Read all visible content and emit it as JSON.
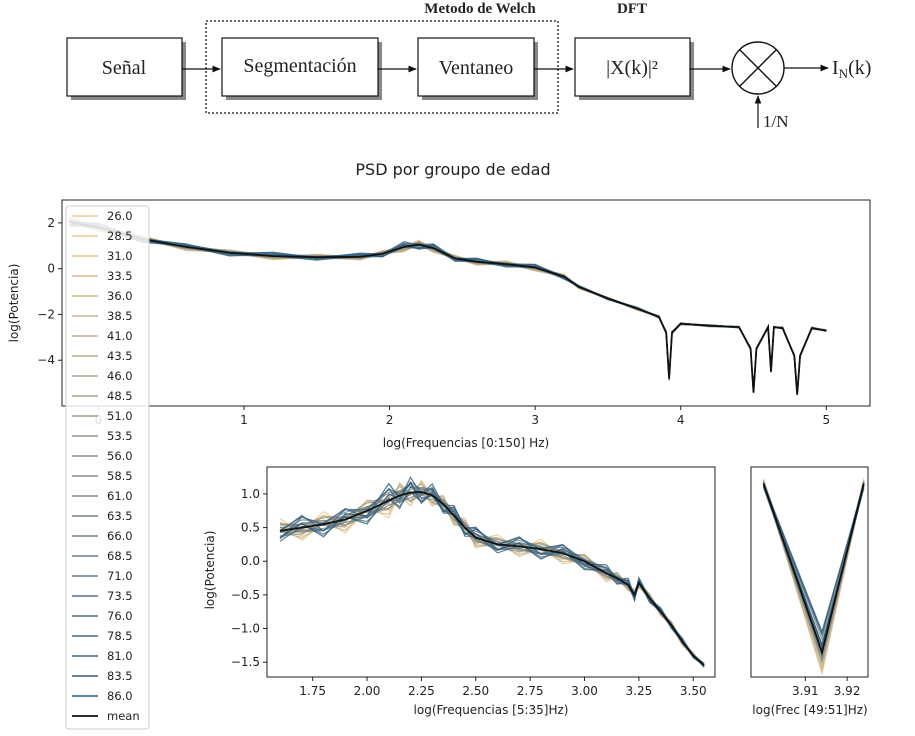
{
  "block_diagram": {
    "group_labels": {
      "welch": "Metodo de Welch",
      "dft": "DFT"
    },
    "blocks": {
      "signal": "Señal",
      "segmentation": "Segmentación",
      "windowing": "Ventaneo",
      "dft": "|X(k)|²"
    },
    "output_label": "I",
    "output_sub": "N",
    "output_suffix": "(k)",
    "multiplier_input": "1/N"
  },
  "colors": {
    "young": "#f2c98d",
    "old": "#2c5e82",
    "mean": "#111111",
    "axis": "#222222"
  },
  "chart_data": [
    {
      "id": "main",
      "type": "line",
      "title": "PSD por groupo de edad",
      "xlabel": "log(Frequencias  [0:150] Hz)",
      "ylabel": "log(Potencia)",
      "xlim": [
        -0.25,
        5.3
      ],
      "ylim": [
        -6.0,
        3.0
      ],
      "xticks": [
        0,
        1,
        2,
        3,
        4,
        5
      ],
      "yticks": [
        2,
        0,
        -2,
        -4
      ],
      "legend_placement": "left",
      "curve_x": [
        -0.2,
        0.0,
        0.3,
        0.6,
        0.9,
        1.2,
        1.5,
        1.8,
        1.95,
        2.1,
        2.2,
        2.3,
        2.45,
        2.6,
        2.8,
        3.0,
        3.2,
        3.3,
        3.5,
        3.7,
        3.85,
        3.9,
        3.92,
        3.94,
        4.0,
        4.2,
        4.4,
        4.48,
        4.5,
        4.52,
        4.6,
        4.62,
        4.64,
        4.7,
        4.78,
        4.8,
        4.82,
        4.9,
        5.0
      ],
      "mean_y": [
        2.05,
        1.8,
        1.3,
        0.95,
        0.7,
        0.55,
        0.5,
        0.52,
        0.65,
        0.95,
        1.05,
        0.9,
        0.45,
        0.3,
        0.2,
        0.05,
        -0.35,
        -0.8,
        -1.3,
        -1.75,
        -2.1,
        -2.8,
        -4.8,
        -2.8,
        -2.4,
        -2.5,
        -2.55,
        -3.5,
        -5.4,
        -3.5,
        -2.55,
        -4.5,
        -2.55,
        -2.6,
        -3.8,
        -5.5,
        -3.8,
        -2.6,
        -2.7
      ],
      "curve_spread": [
        0.3,
        0.25,
        0.2,
        0.2,
        0.2,
        0.2,
        0.2,
        0.2,
        0.2,
        0.3,
        0.3,
        0.25,
        0.2,
        0.2,
        0.2,
        0.2,
        0.15,
        0.1,
        0.08,
        0.08,
        0.08,
        0.08,
        0.1,
        0.08,
        0.06,
        0.06,
        0.06,
        0.06,
        0.06,
        0.06,
        0.06,
        0.06,
        0.06,
        0.06,
        0.06,
        0.06,
        0.06,
        0.06,
        0.06
      ]
    },
    {
      "id": "mid",
      "type": "line",
      "xlabel": "log(Frequencias [5:35]Hz)",
      "ylabel": "log(Potencia)",
      "xlim": [
        1.54,
        3.6
      ],
      "ylim": [
        -1.72,
        1.4
      ],
      "xticks": [
        1.75,
        2.0,
        2.25,
        2.5,
        2.75,
        3.0,
        3.25,
        3.5
      ],
      "xtick_labels": [
        "1.75",
        "2.00",
        "2.25",
        "2.50",
        "2.75",
        "3.00",
        "3.25",
        "3.50"
      ],
      "yticks": [
        1.0,
        0.5,
        0.0,
        -0.5,
        -1.0,
        -1.5
      ],
      "ytick_labels": [
        "1.0",
        "0.5",
        "0.0",
        "−0.5",
        "−1.0",
        "−1.5"
      ],
      "curve_x": [
        1.6,
        1.7,
        1.8,
        1.9,
        2.0,
        2.1,
        2.15,
        2.2,
        2.25,
        2.3,
        2.35,
        2.4,
        2.45,
        2.5,
        2.6,
        2.7,
        2.8,
        2.9,
        3.0,
        3.1,
        3.15,
        3.2,
        3.23,
        3.25,
        3.3,
        3.35,
        3.4,
        3.45,
        3.5,
        3.55
      ],
      "mean_y": [
        0.45,
        0.5,
        0.55,
        0.62,
        0.75,
        0.9,
        0.98,
        1.02,
        1.03,
        0.98,
        0.85,
        0.68,
        0.5,
        0.35,
        0.25,
        0.22,
        0.18,
        0.12,
        0.0,
        -0.18,
        -0.25,
        -0.35,
        -0.5,
        -0.32,
        -0.55,
        -0.75,
        -0.95,
        -1.2,
        -1.4,
        -1.55
      ],
      "curve_spread": [
        0.25,
        0.25,
        0.25,
        0.25,
        0.28,
        0.3,
        0.3,
        0.28,
        0.25,
        0.22,
        0.2,
        0.2,
        0.2,
        0.2,
        0.2,
        0.2,
        0.2,
        0.2,
        0.18,
        0.15,
        0.14,
        0.12,
        0.12,
        0.1,
        0.1,
        0.08,
        0.08,
        0.07,
        0.06,
        0.05
      ]
    },
    {
      "id": "zoom",
      "type": "line",
      "xlabel": "log(Frec [49:51]Hz)",
      "xlim": [
        3.897,
        3.925
      ],
      "ylim": [
        -4.9,
        -2.35
      ],
      "xticks": [
        3.91,
        3.92
      ],
      "xtick_labels": [
        "3.91",
        "3.92"
      ],
      "curve_x": [
        3.9,
        3.914,
        3.924
      ],
      "mean_y": [
        -2.55,
        -4.6,
        -2.55
      ],
      "curve_spread": [
        0.08,
        0.35,
        0.08
      ]
    }
  ],
  "legend": {
    "entries": [
      "26.0",
      "28.5",
      "31.0",
      "33.5",
      "36.0",
      "38.5",
      "41.0",
      "43.5",
      "46.0",
      "48.5",
      "51.0",
      "53.5",
      "56.0",
      "58.5",
      "61.0",
      "63.5",
      "66.0",
      "68.5",
      "71.0",
      "73.5",
      "76.0",
      "78.5",
      "81.0",
      "83.5",
      "86.0"
    ],
    "mean_label": "mean"
  }
}
